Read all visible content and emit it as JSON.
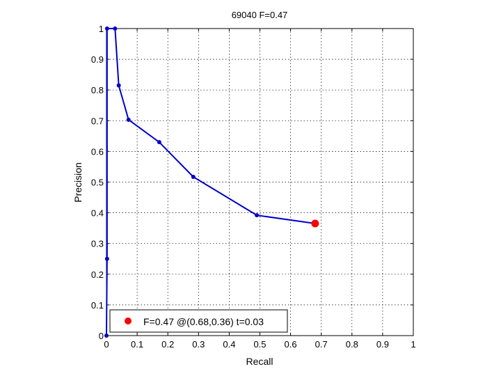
{
  "chart_data": {
    "type": "line",
    "title": "69040 F=0.47",
    "xlabel": "Recall",
    "ylabel": "Precision",
    "xlim": [
      0,
      1
    ],
    "ylim": [
      0,
      1
    ],
    "xticks": [
      0,
      0.1,
      0.2,
      0.3,
      0.4,
      0.5,
      0.6,
      0.7,
      0.8,
      0.9,
      1
    ],
    "yticks": [
      0,
      0.1,
      0.2,
      0.3,
      0.4,
      0.5,
      0.6,
      0.7,
      0.8,
      0.9,
      1
    ],
    "grid": true,
    "legend_position": "bottom-left",
    "series": [
      {
        "color": "#0000cc",
        "x": [
          0,
          0.002,
          0.002,
          0.028,
          0.04,
          0.072,
          0.172,
          0.283,
          0.49,
          0.68
        ],
        "y": [
          0,
          0.25,
          1.0,
          1.0,
          0.815,
          0.703,
          0.63,
          0.517,
          0.392,
          0.365
        ]
      }
    ],
    "best_point": {
      "x": 0.68,
      "y": 0.365,
      "color": "#ff0000",
      "label": "F=0.47 @(0.68,0.36) t=0.03"
    }
  }
}
